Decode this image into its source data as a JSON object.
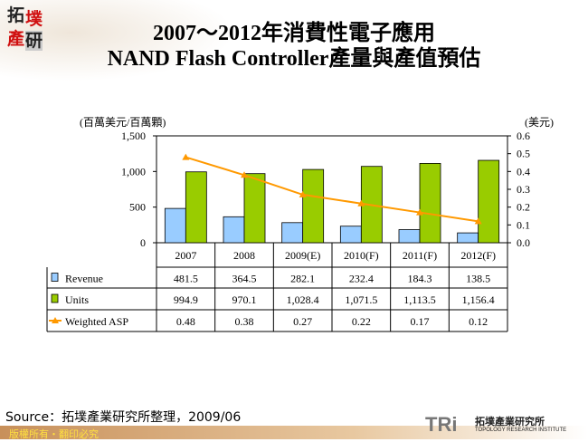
{
  "logo": {
    "chars": [
      "拓",
      "墣",
      "產",
      "研"
    ]
  },
  "title_line1": "2007～2012年消費性電子應用",
  "title_line2": "NAND Flash Controller產量與產值預估",
  "source": "Source：拓墣產業研究所整理，2009/06",
  "footer": "版權所有・翻印必究",
  "brand": {
    "mark": "TRi",
    "name_cn": "拓墣產業研究所",
    "name_en": "TOPOLOGY RESEARCH INSTITUTE"
  },
  "chart_data": {
    "type": "bar",
    "categories": [
      "2007",
      "2008",
      "2009(E)",
      "2010(F)",
      "2011(F)",
      "2012(F)"
    ],
    "left_unit": "(百萬美元/百萬顆)",
    "right_unit": "(美元)",
    "ylim": [
      0,
      1500
    ],
    "y_ticks": [
      "0",
      "500",
      "1,000",
      "1,500"
    ],
    "y2lim": [
      0,
      0.6
    ],
    "y2_ticks": [
      "0.0",
      "0.1",
      "0.2",
      "0.3",
      "0.4",
      "0.5",
      "0.6"
    ],
    "series": [
      {
        "name": "Revenue",
        "type": "bar",
        "axis": "left",
        "color": "#99ccff",
        "values": [
          481.5,
          364.5,
          282.1,
          232.4,
          184.3,
          138.5
        ],
        "labels": [
          "481.5",
          "364.5",
          "282.1",
          "232.4",
          "184.3",
          "138.5"
        ]
      },
      {
        "name": "Units",
        "type": "bar",
        "axis": "left",
        "color": "#99cc00",
        "values": [
          994.9,
          970.1,
          1028.4,
          1071.5,
          1113.5,
          1156.4
        ],
        "labels": [
          "994.9",
          "970.1",
          "1,028.4",
          "1,071.5",
          "1,113.5",
          "1,156.4"
        ]
      },
      {
        "name": "Weighted ASP",
        "type": "line",
        "axis": "right",
        "color": "#ff9900",
        "values": [
          0.48,
          0.38,
          0.27,
          0.22,
          0.17,
          0.12
        ],
        "labels": [
          "0.48",
          "0.38",
          "0.27",
          "0.22",
          "0.17",
          "0.12"
        ]
      }
    ]
  }
}
